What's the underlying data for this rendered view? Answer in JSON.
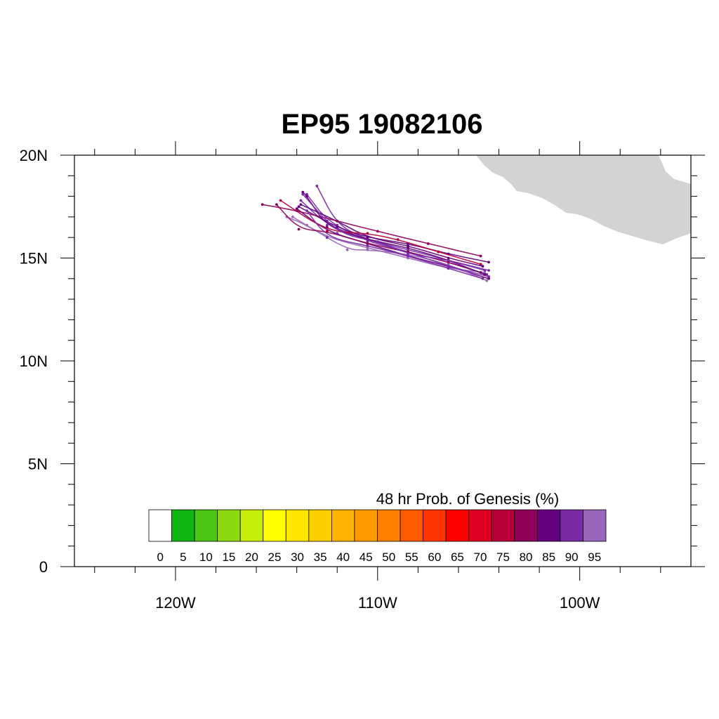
{
  "title": "EP95 19082106",
  "map": {
    "lon_range": [
      -125,
      -94.5
    ],
    "lat_range": [
      0,
      20
    ],
    "land_color": "#d3d3d3"
  },
  "axes": {
    "y_ticks": [
      {
        "value": 20,
        "label": "20N"
      },
      {
        "value": 15,
        "label": "15N"
      },
      {
        "value": 10,
        "label": "10N"
      },
      {
        "value": 5,
        "label": "5N"
      },
      {
        "value": 0,
        "label": "0"
      }
    ],
    "x_ticks": [
      {
        "value": -120,
        "label": "120W"
      },
      {
        "value": -110,
        "label": "110W"
      },
      {
        "value": -100,
        "label": "100W"
      }
    ]
  },
  "colorbar": {
    "title": "48 hr Prob. of Genesis (%)",
    "labels": [
      "0",
      "5",
      "10",
      "15",
      "20",
      "25",
      "30",
      "35",
      "40",
      "45",
      "50",
      "55",
      "60",
      "65",
      "70",
      "75",
      "80",
      "85",
      "90",
      "95"
    ],
    "colors": [
      "#ffffff",
      "#11b512",
      "#4cc614",
      "#8fd911",
      "#c7ee0b",
      "#ffff00",
      "#ffe600",
      "#ffd000",
      "#ffb300",
      "#ff9a00",
      "#ff7f00",
      "#ff5a00",
      "#ff3500",
      "#ff0000",
      "#de0022",
      "#b7003a",
      "#8f0058",
      "#62007d",
      "#7b2aa5",
      "#9966bb"
    ]
  },
  "chart_data": {
    "type": "track_ensemble",
    "title": "EP95 19082106",
    "colorbar_title": "48 hr Prob. of Genesis (%)",
    "tracks": [
      {
        "pct": 90,
        "points": [
          [
            -104.7,
            14.4
          ],
          [
            -106.5,
            14.9
          ],
          [
            -108.5,
            15.4
          ],
          [
            -110.5,
            15.9
          ],
          [
            -112.5,
            16.6
          ],
          [
            -113.8,
            17.8
          ]
        ]
      },
      {
        "pct": 90,
        "points": [
          [
            -104.6,
            14.2
          ],
          [
            -106.5,
            14.8
          ],
          [
            -108.5,
            15.3
          ],
          [
            -110.5,
            15.8
          ],
          [
            -112.5,
            16.8
          ],
          [
            -113.5,
            18.1
          ]
        ]
      },
      {
        "pct": 85,
        "points": [
          [
            -104.8,
            14.6
          ],
          [
            -106.5,
            15.0
          ],
          [
            -108.5,
            15.6
          ],
          [
            -110.5,
            16.0
          ],
          [
            -112.0,
            16.8
          ],
          [
            -113.8,
            17.6
          ]
        ]
      },
      {
        "pct": 85,
        "points": [
          [
            -104.5,
            14.0
          ],
          [
            -106.5,
            14.6
          ],
          [
            -108.5,
            15.1
          ],
          [
            -110.5,
            15.7
          ],
          [
            -112.5,
            16.3
          ],
          [
            -114.0,
            17.4
          ]
        ]
      },
      {
        "pct": 95,
        "points": [
          [
            -104.7,
            14.3
          ],
          [
            -106.5,
            14.5
          ],
          [
            -108.5,
            15.0
          ],
          [
            -110.5,
            15.5
          ],
          [
            -112.5,
            16.0
          ],
          [
            -114.2,
            17.0
          ]
        ]
      },
      {
        "pct": 95,
        "points": [
          [
            -104.6,
            13.9
          ],
          [
            -106.5,
            14.7
          ],
          [
            -108.5,
            15.2
          ],
          [
            -110.5,
            15.4
          ],
          [
            -111.5,
            15.4
          ],
          [
            -113.5,
            16.6
          ],
          [
            -114.5,
            17.0
          ]
        ]
      },
      {
        "pct": 90,
        "points": [
          [
            -104.5,
            14.1
          ],
          [
            -106.5,
            14.6
          ],
          [
            -108.5,
            15.3
          ],
          [
            -110.5,
            15.9
          ],
          [
            -112.0,
            16.6
          ],
          [
            -113.0,
            18.5
          ]
        ]
      },
      {
        "pct": 85,
        "points": [
          [
            -104.5,
            14.8
          ],
          [
            -106.5,
            15.2
          ],
          [
            -108.5,
            15.7
          ],
          [
            -110.5,
            16.0
          ],
          [
            -112.0,
            16.5
          ],
          [
            -113.9,
            17.5
          ]
        ]
      },
      {
        "pct": 80,
        "points": [
          [
            -104.9,
            15.1
          ],
          [
            -107.5,
            15.7
          ],
          [
            -110.0,
            16.3
          ],
          [
            -112.0,
            16.8
          ],
          [
            -114.0,
            17.3
          ],
          [
            -115.7,
            17.6
          ]
        ]
      },
      {
        "pct": 80,
        "points": [
          [
            -104.9,
            14.3
          ],
          [
            -106.5,
            14.8
          ],
          [
            -108.5,
            15.3
          ],
          [
            -110.5,
            15.7
          ],
          [
            -112.5,
            16.3
          ],
          [
            -113.9,
            16.4
          ],
          [
            -115.0,
            17.6
          ]
        ]
      },
      {
        "pct": 85,
        "points": [
          [
            -104.7,
            14.2
          ],
          [
            -106.5,
            14.9
          ],
          [
            -108.5,
            15.5
          ],
          [
            -110.5,
            15.9
          ],
          [
            -112.5,
            16.5
          ],
          [
            -113.5,
            18.0
          ],
          [
            -113.7,
            18.2
          ]
        ]
      },
      {
        "pct": 75,
        "points": [
          [
            -104.9,
            14.7
          ],
          [
            -107.0,
            15.3
          ],
          [
            -109.0,
            15.9
          ],
          [
            -110.5,
            16.2
          ],
          [
            -112.5,
            16.3
          ],
          [
            -114.8,
            17.8
          ]
        ]
      },
      {
        "pct": 90,
        "points": [
          [
            -104.5,
            14.4
          ],
          [
            -106.5,
            14.9
          ],
          [
            -108.5,
            15.2
          ],
          [
            -110.0,
            15.8
          ],
          [
            -112.0,
            16.2
          ],
          [
            -113.7,
            18.1
          ]
        ]
      },
      {
        "pct": 90,
        "points": [
          [
            -104.8,
            14.0
          ],
          [
            -106.5,
            14.5
          ],
          [
            -108.5,
            15.1
          ],
          [
            -110.5,
            15.6
          ],
          [
            -112.5,
            16.0
          ],
          [
            -113.5,
            17.3
          ]
        ]
      }
    ]
  }
}
